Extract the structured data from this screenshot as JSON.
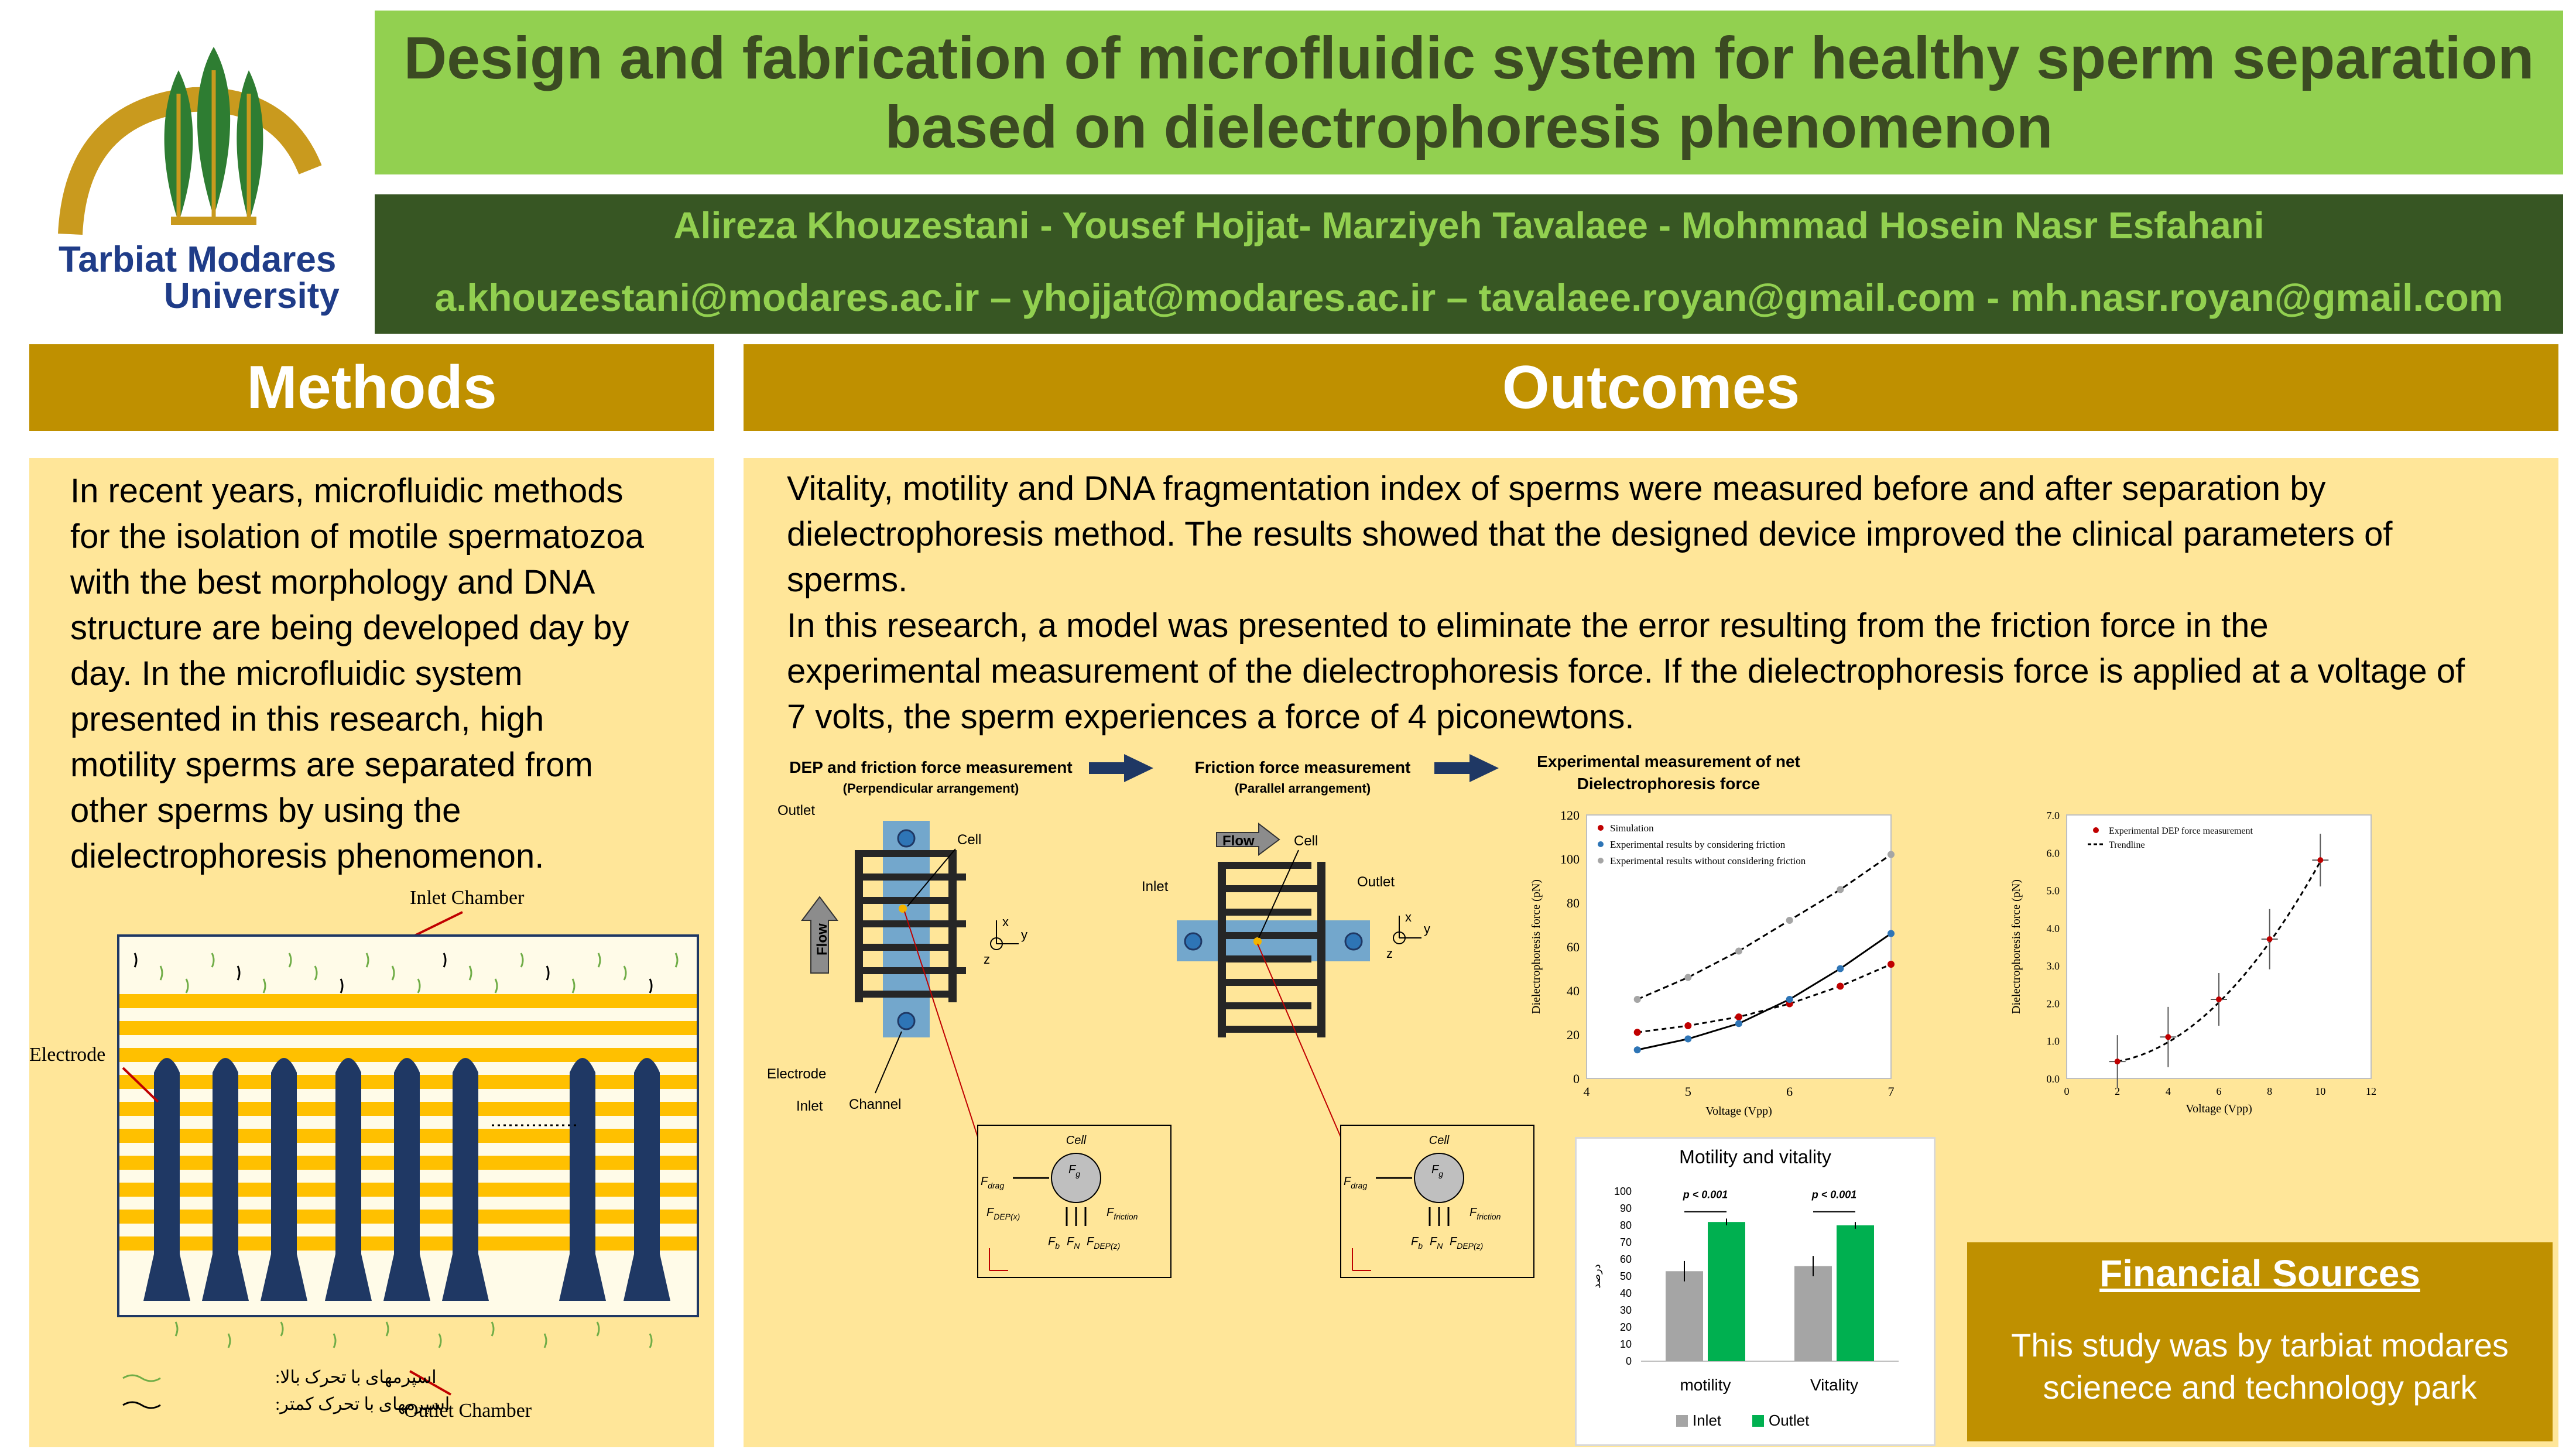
{
  "logo": {
    "line1": "Tarbiat Modares",
    "line2": "University"
  },
  "title": {
    "line1": "Design and fabrication of microfluidic system for healthy sperm separation",
    "line2": "based on dielectrophoresis phenomenon"
  },
  "authors": {
    "names": "Alireza Khouzestani - Yousef Hojjat- Marziyeh Tavalaee - Mohmmad Hosein Nasr Esfahani",
    "emails": "a.khouzestani@modares.ac.ir – yhojjat@modares.ac.ir – tavalaee.royan@gmail.com - mh.nasr.royan@gmail.com"
  },
  "methods": {
    "heading": "Methods",
    "lines": [
      "In recent years, microfluidic methods",
      "for the isolation of motile spermatozoa",
      "with the best morphology and DNA",
      "structure are being developed day by",
      "day. In the microfluidic system",
      "presented in this research, high",
      "motility sperms are separated from",
      "other sperms by using the",
      "dielectrophoresis phenomenon."
    ],
    "figure": {
      "inlet_chamber": "Inlet Chamber",
      "outlet_chamber": "Outlet Chamber",
      "electrode": "Electrode",
      "legend_high": "اسپرمهای با تحرک بالا:",
      "legend_low": "اسپرمهای با تحرک کمتر:"
    }
  },
  "outcomes": {
    "heading": "Outcomes",
    "lines": [
      "Vitality, motility and DNA fragmentation index of sperms were measured before and after separation by",
      "dielectrophoresis method. The results showed that the designed device improved the clinical parameters of",
      "sperms.",
      "In this research, a model was presented to eliminate the error resulting from the friction force in the",
      "experimental measurement of the dielectrophoresis force. If the dielectrophoresis force is applied at a voltage of",
      "7 volts, the sperm experiences a force of 4 piconewtons."
    ],
    "schematic": {
      "step1_title": "DEP and friction force measurement",
      "step1_sub": "(Perpendicular arrangement)",
      "step2_title": "Friction force measurement",
      "step2_sub": "(Parallel arrangement)",
      "step3_title_1": "Experimental measurement of net",
      "step3_title_2": "Dielectrophoresis force",
      "outlet": "Outlet",
      "cell": "Cell",
      "inlet": "Inlet",
      "electrode": "Electrode",
      "channel": "Channel",
      "flow": "Flow",
      "axis_x": "x",
      "axis_y": "y",
      "axis_z": "z",
      "fbd_cell": "Cell",
      "fbd_fg": "F",
      "fbd_fg_sub": "g",
      "fbd_fdrag": "F",
      "fbd_fdrag_sub": "drag",
      "fbd_ffric": "F",
      "fbd_ffric_sub": "friction",
      "fbd_fdepx": "F",
      "fbd_fdepx_sub": "DEP(x)",
      "fbd_fb": "F",
      "fbd_fb_sub": "b",
      "fbd_fn": "F",
      "fbd_fn_sub": "N",
      "fbd_fdepz": "F",
      "fbd_fdepz_sub": "DEP(z)"
    }
  },
  "chart_data": [
    {
      "type": "line",
      "xlabel": "Voltage (Vpp)",
      "ylabel": "Dielectrophoresis force (pN)",
      "xlim": [
        4,
        7
      ],
      "ylim": [
        0,
        120
      ],
      "xticks": [
        4,
        5,
        6,
        7
      ],
      "yticks": [
        0,
        20,
        40,
        60,
        80,
        100,
        120
      ],
      "legend_position": "top-left",
      "series": [
        {
          "name": "Simulation",
          "color": "#c00000",
          "x": [
            4.5,
            5,
            5.5,
            6,
            6.5,
            7
          ],
          "y": [
            21,
            24,
            28,
            34,
            42,
            52
          ]
        },
        {
          "name": "Experimental results by considering friction",
          "color": "#2e75b6",
          "x": [
            4.5,
            5,
            5.5,
            6,
            6.5,
            7
          ],
          "y": [
            13,
            18,
            25,
            36,
            50,
            66
          ]
        },
        {
          "name": "Experimental results without considering friction",
          "color": "#a5a5a5",
          "x": [
            4.5,
            5,
            5.5,
            6,
            6.5,
            7
          ],
          "y": [
            36,
            46,
            58,
            72,
            86,
            102
          ]
        }
      ]
    },
    {
      "type": "scatter",
      "xlabel": "Voltage (Vpp)",
      "ylabel": "Dielectrophoresis force (pN)",
      "xlim": [
        0,
        12
      ],
      "ylim": [
        0,
        7
      ],
      "xticks": [
        0,
        2,
        4,
        6,
        8,
        10,
        12
      ],
      "yticks": [
        "0.0",
        "1.0",
        "2.0",
        "3.0",
        "4.0",
        "5.0",
        "6.0",
        "7.0"
      ],
      "legend_position": "top-left",
      "series": [
        {
          "name": "Experimental DEP force measurement",
          "color": "#c00000",
          "x": [
            2,
            4,
            6,
            8,
            10
          ],
          "y": [
            0.45,
            1.1,
            2.1,
            3.7,
            5.8
          ],
          "err": [
            0.7,
            0.8,
            0.7,
            0.8,
            0.7
          ]
        },
        {
          "name": "Trendline",
          "color": "#000000",
          "style": "dashed"
        }
      ]
    },
    {
      "type": "bar",
      "title": "Motility and vitality",
      "ylabel": "درصد",
      "categories": [
        "motility",
        "Vitality"
      ],
      "ylim": [
        0,
        100
      ],
      "yticks": [
        0,
        10,
        20,
        30,
        40,
        50,
        60,
        70,
        80,
        90,
        100
      ],
      "significance": [
        "p < 0.001",
        "p < 0.001"
      ],
      "legend_position": "bottom",
      "series": [
        {
          "name": "Inlet",
          "color": "#a5a5a5",
          "values": [
            53,
            56
          ],
          "err": [
            6,
            6
          ]
        },
        {
          "name": "Outlet",
          "color": "#00b050",
          "values": [
            82,
            80
          ],
          "err": [
            2,
            2
          ]
        }
      ]
    }
  ],
  "financial": {
    "heading": "Financial Sources",
    "line1": "This study was by tarbiat modares",
    "line2": "scienece and technology park"
  }
}
